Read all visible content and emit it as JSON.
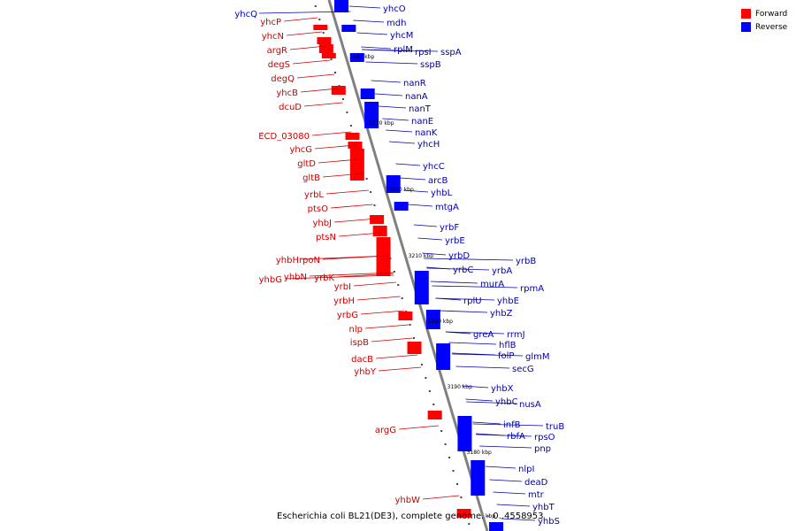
{
  "legend": {
    "items": [
      {
        "label": "Forward",
        "color": "#ff0000"
      },
      {
        "label": "Reverse",
        "color": "#0000ff"
      }
    ]
  },
  "caption": "Escherichia coli BL21(DE3), complete genome. - 0..4558953",
  "colors": {
    "forward": "#ff0000",
    "reverse": "#0000ff",
    "forward_label": "#cc0000",
    "reverse_label": "#0000aa",
    "backbone": "#808080",
    "leader": "#000000"
  },
  "scale_labels": [
    "3240 kbp",
    "3230 kbp",
    "3220 kbp",
    "3210 kbp",
    "3200 kbp",
    "3190 kbp",
    "3180 kbp",
    "kbp"
  ],
  "forward_labels": [
    "yhcP",
    "yhcN",
    "argR",
    "degS",
    "degQ",
    "yhcB",
    "dcuD",
    "ECD_03080",
    "yhcG",
    "gltD",
    "gltB",
    "yrbL",
    "ptsO",
    "yhbJ",
    "ptsN",
    "yhbH",
    "rpoN",
    "yhbG",
    "yhbN",
    "yrbK",
    "yrbI",
    "yrbH",
    "yrbG",
    "nlp",
    "ispB",
    "dacB",
    "yhbY",
    "argG",
    "yhbW"
  ],
  "reverse_labels": [
    "yhcQ",
    "yhcO",
    "mdh",
    "yhcM",
    "rplM",
    "rpsI",
    "sspA",
    "sspB",
    "nanR",
    "nanA",
    "nanT",
    "nanE",
    "nanK",
    "yhcH",
    "yhcC",
    "arcB",
    "yhbL",
    "mtgA",
    "yrbF",
    "yrbE",
    "yrbD",
    "yrbC",
    "yrbA",
    "yrbB",
    "murA",
    "rpmA",
    "rplU",
    "yhbE",
    "yhbZ",
    "greA",
    "rrmJ",
    "hflB",
    "folP",
    "glmM",
    "secG",
    "yhbX",
    "yhbC",
    "nusA",
    "infB",
    "truB",
    "rbfA",
    "rpsO",
    "pnp",
    "nlpI",
    "deaD",
    "mtr",
    "yhbT",
    "yhbS"
  ]
}
